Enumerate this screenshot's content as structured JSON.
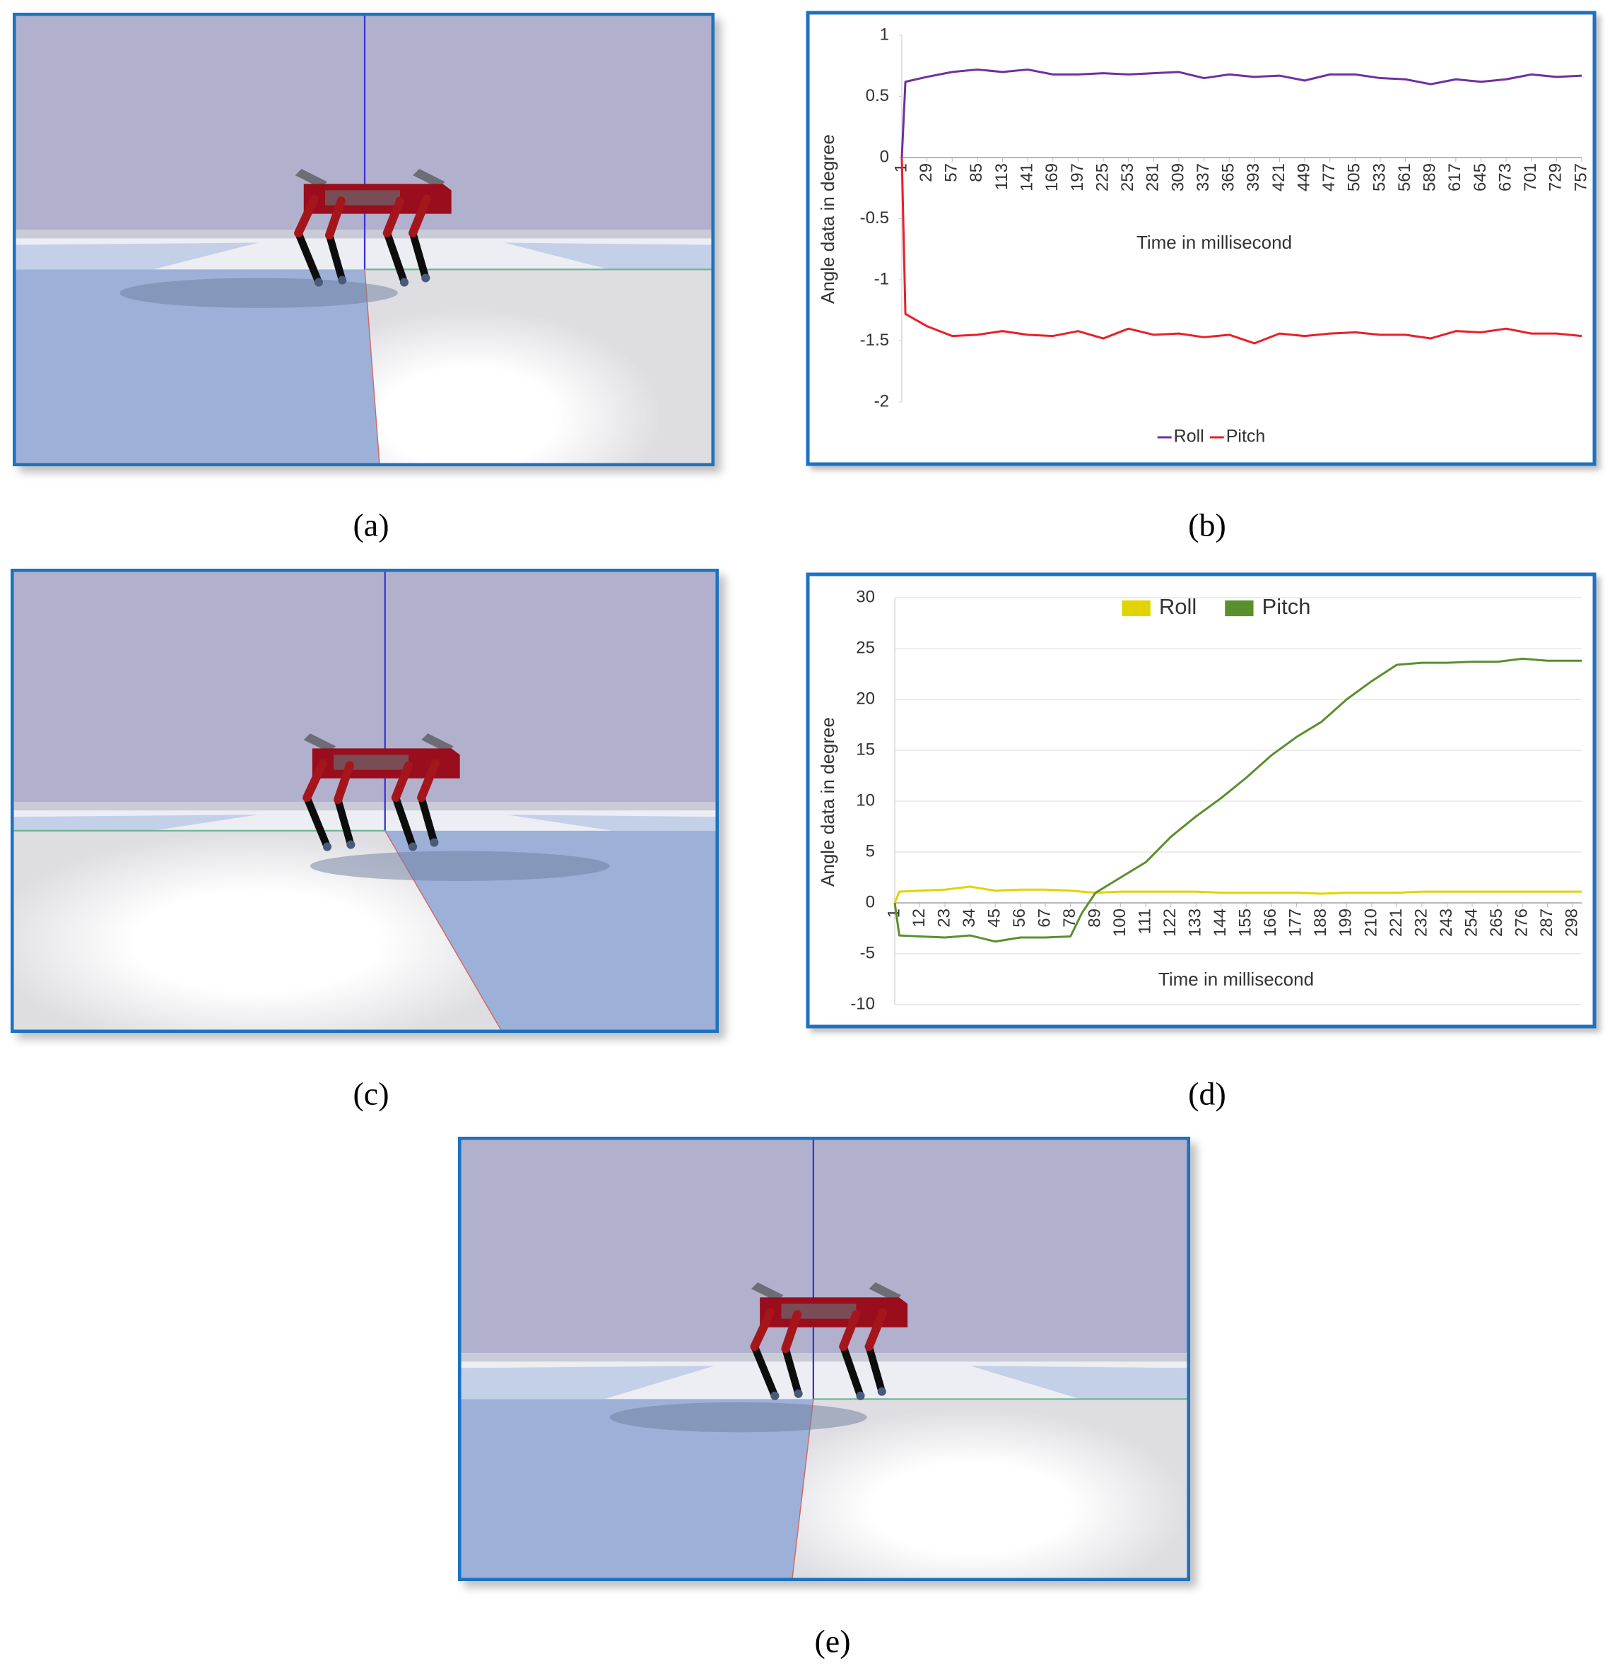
{
  "figure_labels": [
    "(a)",
    "(b)",
    "(c)",
    "(d)",
    "(e)"
  ],
  "chart_data": [
    {
      "type": "line",
      "x_label": "Time in millisecond",
      "y_label": "Angle data in degree",
      "x": [
        1,
        5,
        29,
        57,
        85,
        113,
        141,
        169,
        197,
        225,
        253,
        281,
        309,
        337,
        365,
        393,
        421,
        449,
        477,
        505,
        533,
        561,
        589,
        617,
        645,
        673,
        701,
        729,
        757
      ],
      "series": [
        {
          "name": "Roll",
          "color": "#7030a0",
          "values": [
            0,
            0.62,
            0.66,
            0.7,
            0.72,
            0.7,
            0.72,
            0.68,
            0.68,
            0.69,
            0.68,
            0.69,
            0.7,
            0.65,
            0.68,
            0.66,
            0.67,
            0.63,
            0.68,
            0.68,
            0.65,
            0.64,
            0.6,
            0.64,
            0.62,
            0.64,
            0.68,
            0.66,
            0.67
          ]
        },
        {
          "name": "Pitch",
          "color": "#e8202a",
          "values": [
            0,
            -1.28,
            -1.38,
            -1.46,
            -1.45,
            -1.42,
            -1.45,
            -1.46,
            -1.42,
            -1.48,
            -1.4,
            -1.45,
            -1.44,
            -1.47,
            -1.45,
            -1.52,
            -1.44,
            -1.46,
            -1.44,
            -1.43,
            -1.45,
            -1.45,
            -1.48,
            -1.42,
            -1.43,
            -1.4,
            -1.44,
            -1.44,
            -1.46
          ]
        }
      ],
      "xlim": [
        1,
        757
      ],
      "xticks": [
        1,
        29,
        57,
        85,
        113,
        141,
        169,
        197,
        225,
        253,
        281,
        309,
        337,
        365,
        393,
        421,
        449,
        477,
        505,
        533,
        561,
        589,
        617,
        645,
        673,
        701,
        729,
        757
      ],
      "ylim": [
        -2,
        1
      ],
      "yticks": [
        -2,
        -1.5,
        -1,
        -0.5,
        0,
        0.5,
        1
      ],
      "grid": false,
      "legend": "bottom",
      "legend_marker": "line"
    },
    {
      "type": "line",
      "x_label": "Time in millisecond",
      "y_label": "Angle data in degree",
      "x": [
        1,
        3,
        12,
        23,
        34,
        45,
        56,
        67,
        78,
        83,
        89,
        100,
        111,
        122,
        133,
        144,
        155,
        166,
        177,
        188,
        199,
        210,
        221,
        232,
        243,
        254,
        265,
        276,
        287,
        302
      ],
      "series": [
        {
          "name": "Roll",
          "color": "#e0d400",
          "values": [
            0,
            1.1,
            1.2,
            1.3,
            1.6,
            1.2,
            1.3,
            1.3,
            1.2,
            1.1,
            1.0,
            1.1,
            1.1,
            1.1,
            1.1,
            1.0,
            1.0,
            1.0,
            1.0,
            0.9,
            1.0,
            1.0,
            1.0,
            1.1,
            1.1,
            1.1,
            1.1,
            1.1,
            1.1,
            1.1
          ]
        },
        {
          "name": "Pitch",
          "color": "#5a8f2e",
          "values": [
            0,
            -3.2,
            -3.3,
            -3.4,
            -3.2,
            -3.8,
            -3.4,
            -3.4,
            -3.3,
            -1,
            1,
            2.5,
            4,
            6.5,
            8.5,
            10.3,
            12.3,
            14.5,
            16.3,
            17.8,
            20,
            21.8,
            23.4,
            23.6,
            23.6,
            23.7,
            23.7,
            24,
            23.8,
            23.8
          ]
        }
      ],
      "xlim": [
        1,
        302
      ],
      "xticks": [
        1,
        12,
        23,
        34,
        45,
        56,
        67,
        78,
        89,
        100,
        111,
        122,
        133,
        144,
        155,
        166,
        177,
        188,
        199,
        210,
        221,
        232,
        243,
        254,
        265,
        276,
        287,
        298
      ],
      "ylim": [
        -10,
        30
      ],
      "yticks": [
        -10,
        -5,
        0,
        5,
        10,
        15,
        20,
        25,
        30
      ],
      "grid": true,
      "legend": "top",
      "legend_marker": "square"
    }
  ]
}
